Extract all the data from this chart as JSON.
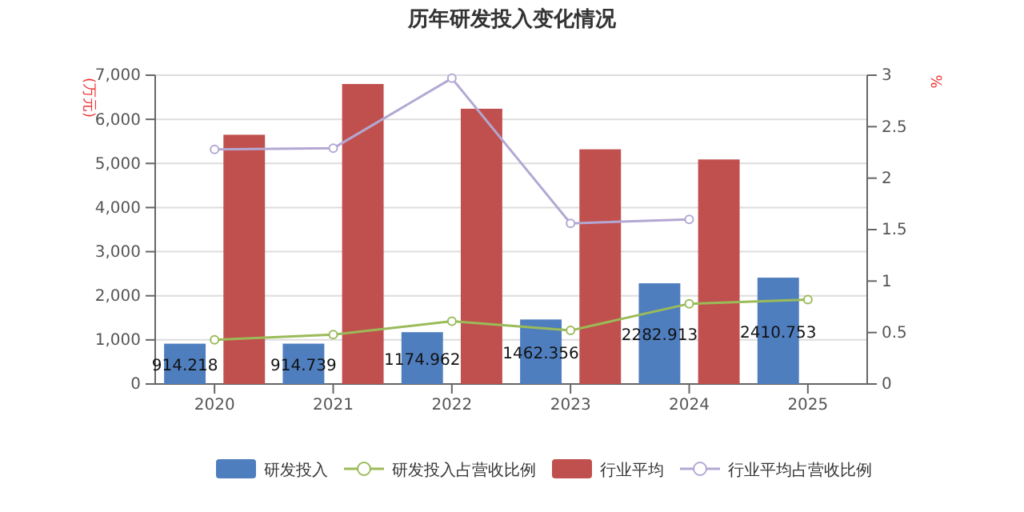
{
  "chart_data": {
    "type": "bar",
    "title": "历年研发投入变化情况",
    "ylabel": "(万元)",
    "y2label": "%",
    "categories": [
      "2020",
      "2021",
      "2022",
      "2023",
      "2024",
      "2025"
    ],
    "series": [
      {
        "name": "研发投入",
        "color": "#4f7ebe",
        "values": [
          914.218,
          914.739,
          1174.962,
          1462.356,
          2282.913,
          2410.753
        ],
        "value_labels": [
          "914.218",
          "914.739",
          "1174.962",
          "1462.356",
          "2282.913",
          "2410.753"
        ]
      },
      {
        "name": "研发投入占营收比例",
        "type": "line",
        "axis": "y2",
        "color": "#9bbb59",
        "values": [
          0.43,
          0.48,
          0.61,
          0.52,
          0.78,
          0.82
        ]
      },
      {
        "name": "行业平均",
        "color": "#c0504d",
        "values": [
          5650,
          6800,
          6240,
          5320,
          5090,
          null
        ]
      },
      {
        "name": "行业平均占营收比例",
        "type": "line",
        "axis": "y2",
        "color": "#b3a8d3",
        "values": [
          2.28,
          2.29,
          2.97,
          1.56,
          1.6,
          null
        ]
      }
    ],
    "ylim": [
      0,
      7000
    ],
    "yticks": [
      {
        "value": 0,
        "label": "0"
      },
      {
        "value": 1000,
        "label": "1,000"
      },
      {
        "value": 2000,
        "label": "2,000"
      },
      {
        "value": 3000,
        "label": "3,000"
      },
      {
        "value": 4000,
        "label": "4,000"
      },
      {
        "value": 5000,
        "label": "5,000"
      },
      {
        "value": 6000,
        "label": "6,000"
      },
      {
        "value": 7000,
        "label": "7,000"
      }
    ],
    "y2lim": [
      0,
      3
    ],
    "y2ticks": [
      0,
      0.5,
      1,
      1.5,
      2,
      2.5,
      3
    ],
    "grid": "y",
    "legend": "bottom",
    "marker": "circle"
  }
}
